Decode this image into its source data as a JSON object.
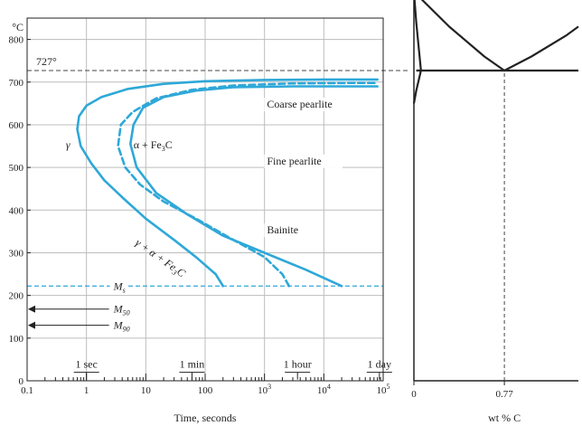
{
  "colors": {
    "curve": "#2ea8d8",
    "grid": "#bdbdbd",
    "axis": "#222222",
    "dashed_ref": "#444444"
  },
  "chart_data": [
    {
      "type": "line",
      "title": "",
      "xlabel": "Time, seconds",
      "ylabel": "",
      "y_unit": "°C",
      "x_scale": "log",
      "xlim": [
        0.1,
        100000
      ],
      "ylim": [
        0,
        850
      ],
      "grid": true,
      "x_ticks": [
        {
          "value": 0.1,
          "label": "0.1"
        },
        {
          "value": 1,
          "label": "1"
        },
        {
          "value": 10,
          "label": "10"
        },
        {
          "value": 100,
          "label": "100"
        },
        {
          "value": 1000,
          "label": "10",
          "exp": "3"
        },
        {
          "value": 10000,
          "label": "10",
          "exp": "4"
        },
        {
          "value": 100000,
          "label": "10",
          "exp": "5"
        }
      ],
      "y_ticks": [
        0,
        100,
        200,
        300,
        400,
        500,
        600,
        700,
        800
      ],
      "time_markers": [
        {
          "label": "1 sec",
          "value": 1
        },
        {
          "label": "1 min",
          "value": 60
        },
        {
          "label": "1 hour",
          "value": 3600
        },
        {
          "label": "1 day",
          "value": 86400
        }
      ],
      "reference_lines": [
        {
          "label": "727°",
          "y": 727
        },
        {
          "label": "M",
          "sub": "s",
          "y": 222
        }
      ],
      "arrows": [
        {
          "label": "M",
          "sub": "50",
          "y": 168
        },
        {
          "label": "M",
          "sub": "90",
          "y": 130
        }
      ],
      "region_labels": [
        {
          "text": "γ",
          "x": 0.45,
          "y": 545
        },
        {
          "text": "α  + Fe",
          "sub": "3",
          "tail": "C",
          "x": 6.2,
          "y": 545
        },
        {
          "text": "Coarse pearlite",
          "x": 1100,
          "y": 640
        },
        {
          "text": "Fine pearlite",
          "x": 1100,
          "y": 507
        },
        {
          "text": "Bainite",
          "x": 1100,
          "y": 345
        },
        {
          "text": "γ  + α  + Fe",
          "sub": "3",
          "tail": "C",
          "x": 6.5,
          "y": 320,
          "rotate": 35
        }
      ],
      "series": [
        {
          "style": "solid",
          "x": [
            200,
            150,
            70,
            30,
            10,
            4,
            2,
            1.2,
            0.8,
            0.7,
            0.75,
            1.0,
            1.8,
            5,
            20,
            100,
            1000,
            10000,
            80000
          ],
          "y": [
            222,
            250,
            290,
            330,
            380,
            430,
            470,
            510,
            550,
            590,
            620,
            645,
            665,
            684,
            696,
            702,
            705,
            706,
            706
          ]
        },
        {
          "style": "dashed",
          "x": [
            2600,
            2000,
            1000,
            300,
            70,
            20,
            8,
            4.5,
            3.4,
            3.8,
            6,
            15,
            60,
            300,
            3000,
            30000,
            80000
          ],
          "y": [
            222,
            250,
            290,
            330,
            380,
            420,
            460,
            500,
            550,
            600,
            630,
            662,
            682,
            692,
            697,
            698,
            698
          ]
        },
        {
          "style": "solid",
          "x": [
            20000,
            5000,
            1000,
            200,
            50,
            15,
            7,
            5.5,
            6.2,
            9,
            20,
            70,
            300,
            3000,
            30000,
            80000
          ],
          "y": [
            222,
            260,
            300,
            340,
            390,
            440,
            500,
            555,
            600,
            640,
            665,
            680,
            688,
            690,
            690,
            690
          ]
        }
      ]
    },
    {
      "type": "line",
      "title": "",
      "xlabel": "wt % C",
      "ylabel": "",
      "x_ticks": [
        {
          "value": 0,
          "label": "0"
        },
        {
          "value": 0.77,
          "label": "0.77"
        }
      ],
      "xlim": [
        0,
        1.4
      ],
      "ylim": [
        0,
        850
      ],
      "series": [
        {
          "style": "solid",
          "x": [
            0,
            0.02,
            0.06,
            0.02,
            0.0
          ],
          "y": [
            912,
            840,
            727,
            680,
            650
          ]
        },
        {
          "style": "solid",
          "x": [
            0,
            0.3,
            0.6,
            0.77,
            1.0,
            1.3,
            1.4
          ],
          "y": [
            912,
            830,
            760,
            727,
            760,
            810,
            830
          ]
        },
        {
          "style": "solid",
          "x": [
            0.02,
            1.4
          ],
          "y": [
            727,
            727
          ]
        },
        {
          "style": "dashed",
          "x": [
            0.77,
            0.77
          ],
          "y": [
            0,
            727
          ]
        }
      ]
    }
  ]
}
